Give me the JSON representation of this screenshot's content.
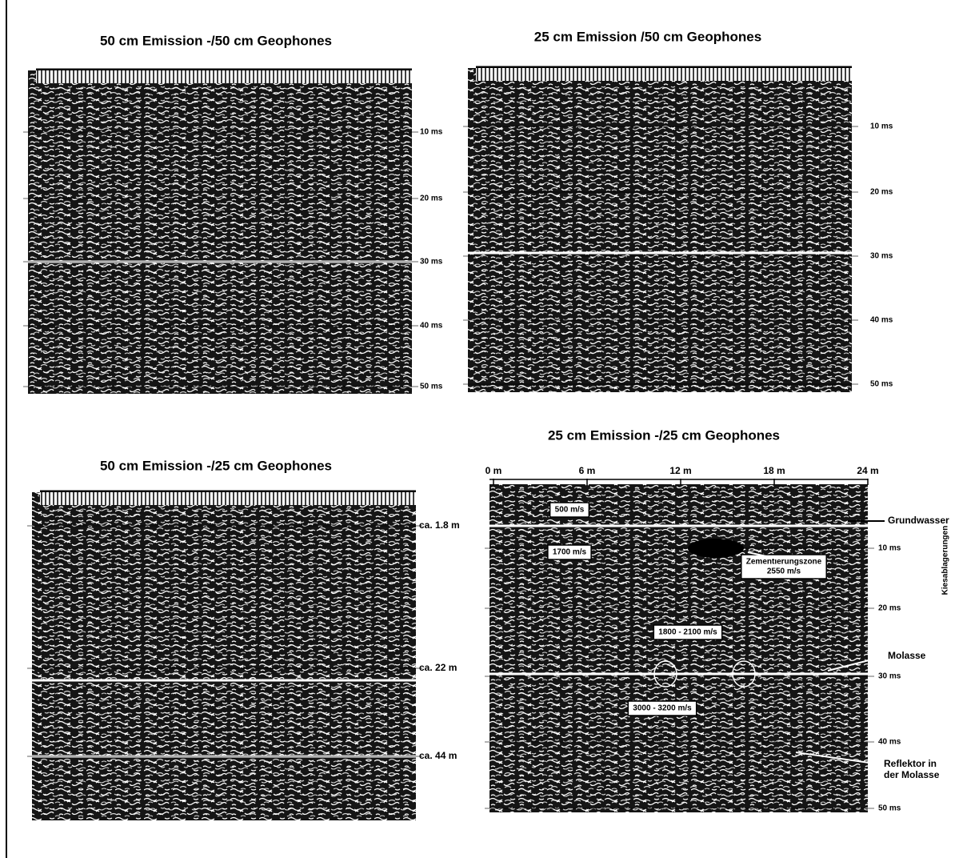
{
  "panels": [
    {
      "title": "50 cm Emission -/50 cm Geophones",
      "depth_labels": [
        "10 ms",
        "20 ms",
        "30 ms",
        "40 ms",
        "50 ms"
      ]
    },
    {
      "title": "25 cm Emission /50 cm Geophones",
      "depth_labels": [
        "10 ms",
        "20 ms",
        "30 ms",
        "40 ms",
        "50 ms"
      ]
    },
    {
      "title": "50 cm Emission -/25 cm Geophones",
      "depth_labels": [
        "ca. 1.8 m",
        "ca. 22 m",
        "ca. 44 m"
      ]
    },
    {
      "title": "25 cm Emission -/25 cm Geophones",
      "distance_labels": [
        "0 m",
        "6 m",
        "12 m",
        "18 m",
        "24 m"
      ],
      "depth_labels": [
        "10 ms",
        "20 ms",
        "30 ms",
        "40 ms",
        "50 ms"
      ],
      "side_label": "Kiesablagerungen",
      "velocity_boxes": [
        [
          "500 m/s"
        ],
        [
          "1700 m/s"
        ],
        [
          "Zementierungszone",
          "2550 m/s"
        ],
        [
          "1800 - 2100 m/s"
        ],
        [
          "3000 - 3200 m/s"
        ]
      ],
      "annotations": [
        [
          "Grundwasser"
        ],
        [
          "Molasse"
        ],
        [
          "Reflektor in",
          "der Molasse"
        ]
      ]
    }
  ]
}
